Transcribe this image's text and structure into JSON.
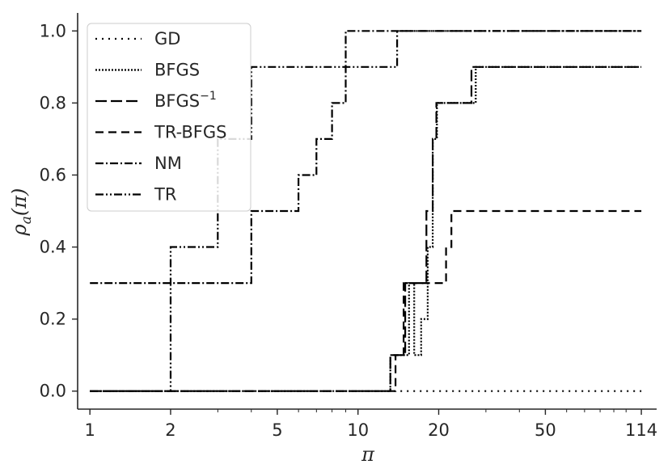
{
  "chart_data": {
    "type": "line",
    "title": "",
    "xlabel": "π",
    "ylabel": "ρ_a(π)",
    "x_scale": "log",
    "xlim": [
      0.9,
      130
    ],
    "ylim": [
      -0.05,
      1.05
    ],
    "x_ticks": [
      1,
      2,
      5,
      10,
      20,
      50,
      114
    ],
    "x_tick_labels": [
      "1",
      "2",
      "5",
      "10",
      "20",
      "50",
      "114"
    ],
    "y_ticks": [
      0.0,
      0.2,
      0.4,
      0.6,
      0.8,
      1.0
    ],
    "y_tick_labels": [
      "0.0",
      "0.2",
      "0.4",
      "0.6",
      "0.8",
      "1.0"
    ],
    "grid": false,
    "legend_position": "top-left",
    "step": "post",
    "series": [
      {
        "name": "GD",
        "dash": "2,6",
        "x": [
          1,
          114
        ],
        "y": [
          0.0,
          0.0
        ]
      },
      {
        "name": "BFGS",
        "dash": "2,2",
        "x": [
          1,
          13.2,
          15.5,
          16.2,
          17.2,
          18.2,
          19.0,
          19.7,
          27.5,
          114
        ],
        "y": [
          0.0,
          0.1,
          0.3,
          0.1,
          0.2,
          0.4,
          0.7,
          0.8,
          0.9,
          0.9
        ]
      },
      {
        "name": "BFGS⁻¹",
        "dash": "14,5",
        "x": [
          1,
          13.2,
          15.0,
          17.5,
          18.0,
          19.0,
          19.6,
          26.5,
          114
        ],
        "y": [
          0.0,
          0.1,
          0.3,
          0.3,
          0.5,
          0.7,
          0.8,
          0.9,
          0.9
        ]
      },
      {
        "name": "TR-BFGS",
        "dash": "10,6",
        "x": [
          1,
          13.8,
          14.8,
          19.8,
          21.3,
          22.3,
          114
        ],
        "y": [
          0.0,
          0.1,
          0.3,
          0.3,
          0.4,
          0.5,
          0.5
        ]
      },
      {
        "name": "NM",
        "dash": "10,3,2,3",
        "x": [
          1,
          2,
          3,
          4,
          6,
          7,
          8,
          9,
          114
        ],
        "y": [
          0.3,
          0.3,
          0.3,
          0.5,
          0.6,
          0.7,
          0.8,
          1.0,
          1.0
        ]
      },
      {
        "name": "TR",
        "dash": "10,3,2,3,2,3",
        "x": [
          1,
          2,
          3,
          4,
          14,
          114
        ],
        "y": [
          0.0,
          0.4,
          0.7,
          0.9,
          1.0,
          1.0
        ]
      }
    ]
  },
  "legend": {
    "labels": [
      "GD",
      "BFGS",
      "BFGS",
      "TR-BFGS",
      "NM",
      "TR"
    ],
    "bfgs_inv_superscript": "−1"
  }
}
